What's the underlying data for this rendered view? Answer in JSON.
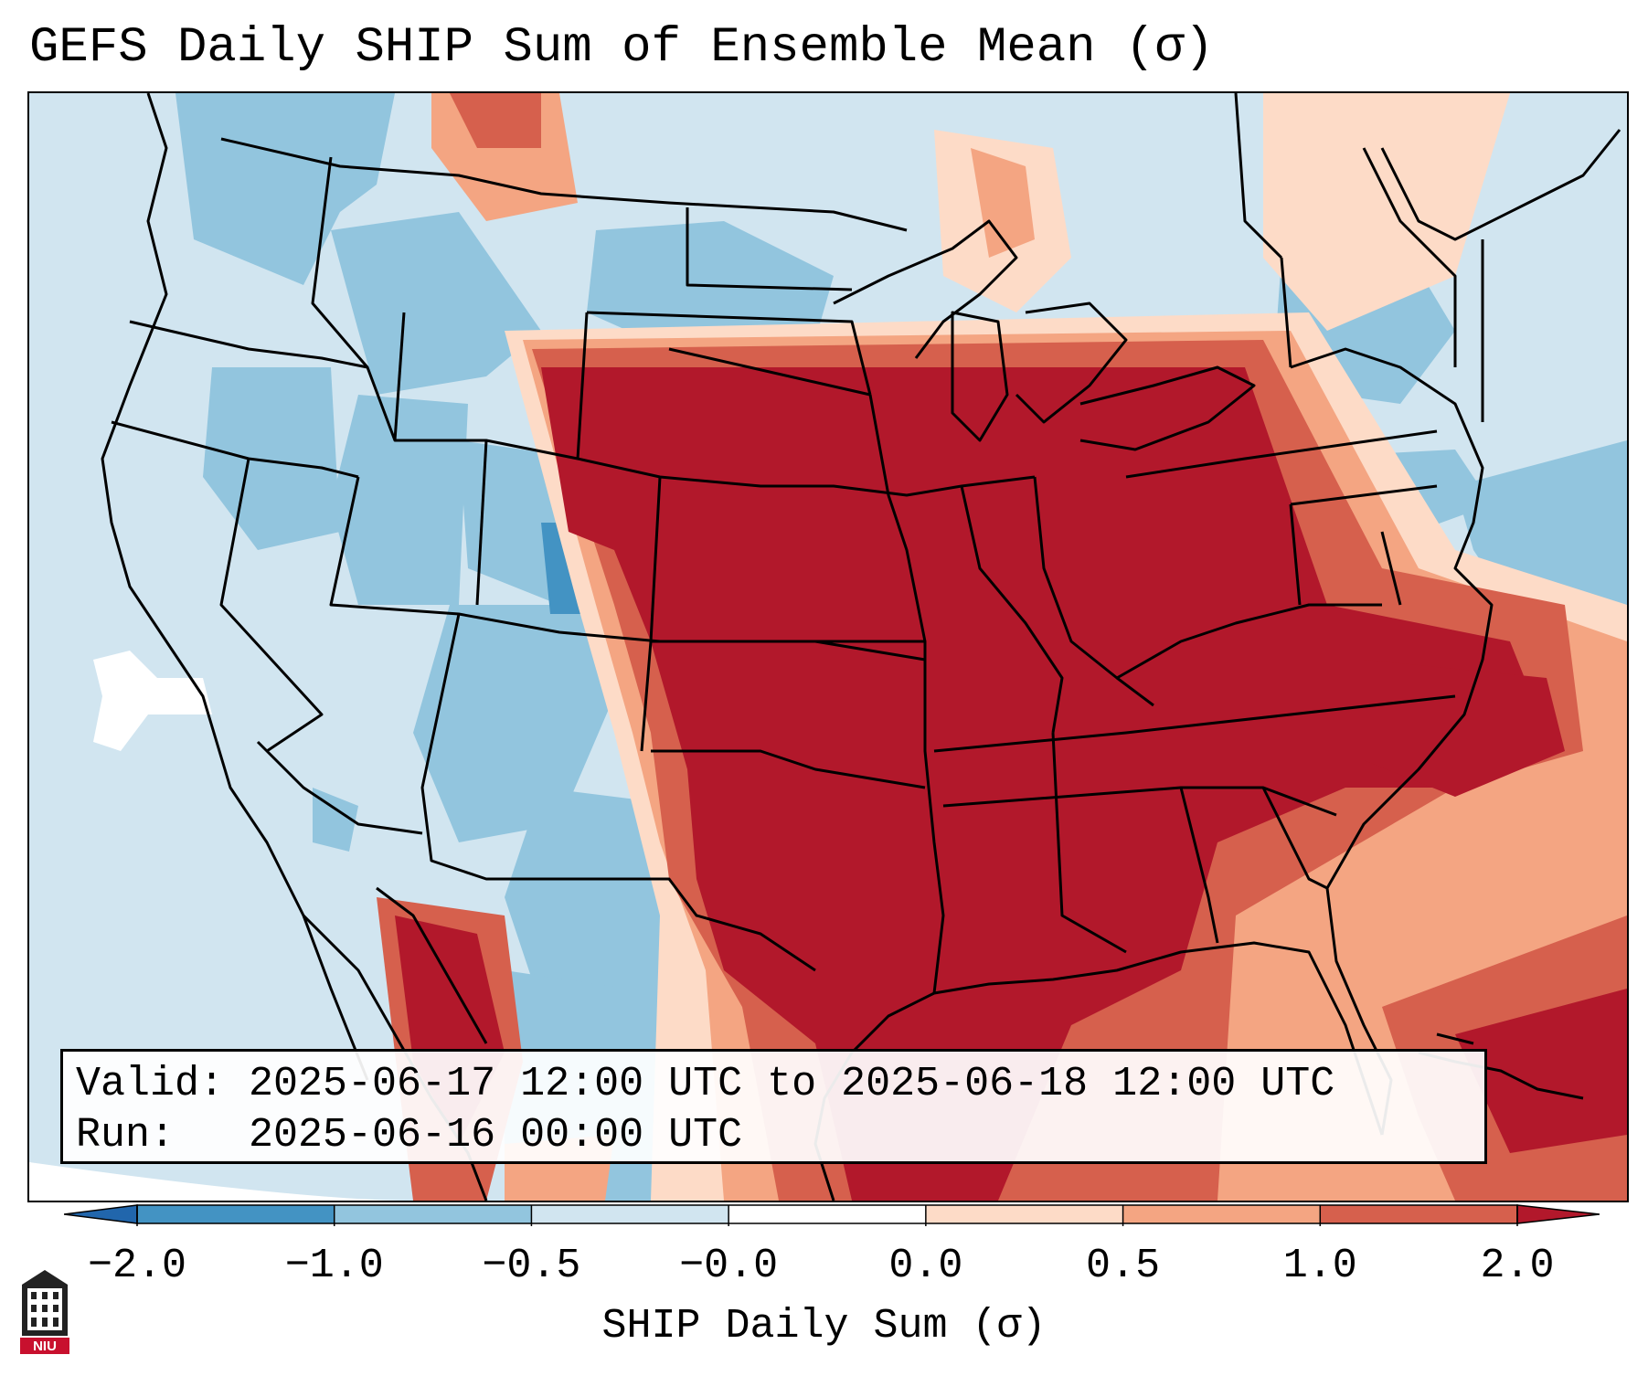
{
  "title": "GEFS Daily SHIP Sum of Ensemble Mean (σ)",
  "info": {
    "valid_line": "Valid: 2025-06-17 12:00 UTC to 2025-06-18 12:00 UTC",
    "run_line": "Run:   2025-06-16 00:00 UTC"
  },
  "colorbar": {
    "label": "SHIP Daily Sum (σ)",
    "ticks": [
      "−2.0",
      "−1.0",
      "−0.5",
      "−0.0",
      "0.0",
      "0.5",
      "1.0",
      "2.0"
    ],
    "colors": [
      "#2166ac",
      "#4393c3",
      "#92c5de",
      "#d1e5f0",
      "#fddbc7",
      "#f4a582",
      "#d6604d",
      "#b2182b"
    ]
  },
  "logo": {
    "text": "NIU",
    "icon": "niu-seal-icon"
  }
}
